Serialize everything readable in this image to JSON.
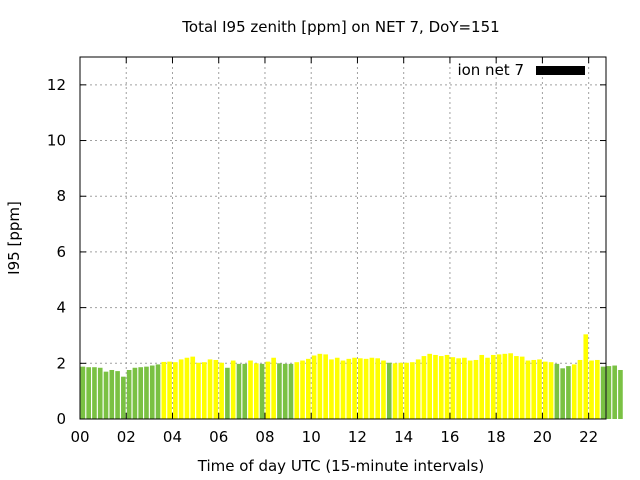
{
  "chart_data": {
    "type": "bar",
    "title": "Total I95 zenith [ppm] on NET 7, DoY=151",
    "xlabel": "Time of day UTC (15-minute intervals)",
    "ylabel": "I95 [ppm]",
    "xlim": [
      0,
      22.75
    ],
    "ylim": [
      0,
      13
    ],
    "interval_hours": 0.25,
    "grid": true,
    "legend_position": "top-right",
    "x_tick_labels": [
      "00",
      "02",
      "04",
      "06",
      "08",
      "10",
      "12",
      "14",
      "16",
      "18",
      "20",
      "22"
    ],
    "x_tick_values": [
      0,
      2,
      4,
      6,
      8,
      10,
      12,
      14,
      16,
      18,
      20,
      22
    ],
    "y_tick_labels": [
      "0",
      "2",
      "4",
      "6",
      "8",
      "10",
      "12"
    ],
    "y_tick_values": [
      0,
      2,
      4,
      6,
      8,
      10,
      12
    ],
    "legend": [
      {
        "label": "ion net 7",
        "color": "#000000"
      }
    ],
    "colors": {
      "green": "#7ac143",
      "yellow": "#ffff00"
    },
    "values": [
      1.88,
      1.86,
      1.86,
      1.84,
      1.7,
      1.76,
      1.72,
      1.52,
      1.76,
      1.84,
      1.86,
      1.88,
      1.92,
      1.96,
      2.05,
      2.06,
      2.04,
      2.14,
      2.2,
      2.24,
      2.02,
      2.04,
      2.14,
      2.12,
      2.02,
      1.84,
      2.1,
      1.98,
      1.98,
      2.1,
      2.0,
      1.98,
      2.06,
      2.2,
      2.0,
      1.98,
      1.98,
      2.04,
      2.1,
      2.16,
      2.28,
      2.34,
      2.32,
      2.14,
      2.2,
      2.1,
      2.16,
      2.2,
      2.18,
      2.16,
      2.2,
      2.18,
      2.1,
      2.02,
      2.0,
      2.02,
      2.02,
      2.04,
      2.14,
      2.26,
      2.34,
      2.3,
      2.26,
      2.3,
      2.22,
      2.18,
      2.2,
      2.1,
      2.12,
      2.3,
      2.2,
      2.3,
      2.32,
      2.34,
      2.36,
      2.26,
      2.24,
      2.1,
      2.12,
      2.14,
      2.06,
      2.04,
      1.98,
      1.82,
      1.9,
      1.96,
      2.12,
      3.04,
      2.1,
      2.12,
      1.88,
      1.9,
      1.92,
      1.76
    ],
    "bar_colors": [
      "green",
      "green",
      "green",
      "green",
      "green",
      "green",
      "green",
      "green",
      "green",
      "green",
      "green",
      "green",
      "green",
      "green",
      "yellow",
      "yellow",
      "yellow",
      "yellow",
      "yellow",
      "yellow",
      "yellow",
      "yellow",
      "yellow",
      "yellow",
      "yellow",
      "green",
      "yellow",
      "green",
      "green",
      "yellow",
      "yellow",
      "green",
      "yellow",
      "yellow",
      "green",
      "green",
      "green",
      "yellow",
      "yellow",
      "yellow",
      "yellow",
      "yellow",
      "yellow",
      "yellow",
      "yellow",
      "yellow",
      "yellow",
      "yellow",
      "yellow",
      "yellow",
      "yellow",
      "yellow",
      "yellow",
      "green",
      "yellow",
      "yellow",
      "yellow",
      "yellow",
      "yellow",
      "yellow",
      "yellow",
      "yellow",
      "yellow",
      "yellow",
      "yellow",
      "yellow",
      "yellow",
      "yellow",
      "yellow",
      "yellow",
      "yellow",
      "yellow",
      "yellow",
      "yellow",
      "yellow",
      "yellow",
      "yellow",
      "yellow",
      "yellow",
      "yellow",
      "yellow",
      "yellow",
      "green",
      "green",
      "green",
      "yellow",
      "yellow",
      "yellow",
      "yellow",
      "yellow",
      "green",
      "green",
      "green",
      "green"
    ]
  }
}
